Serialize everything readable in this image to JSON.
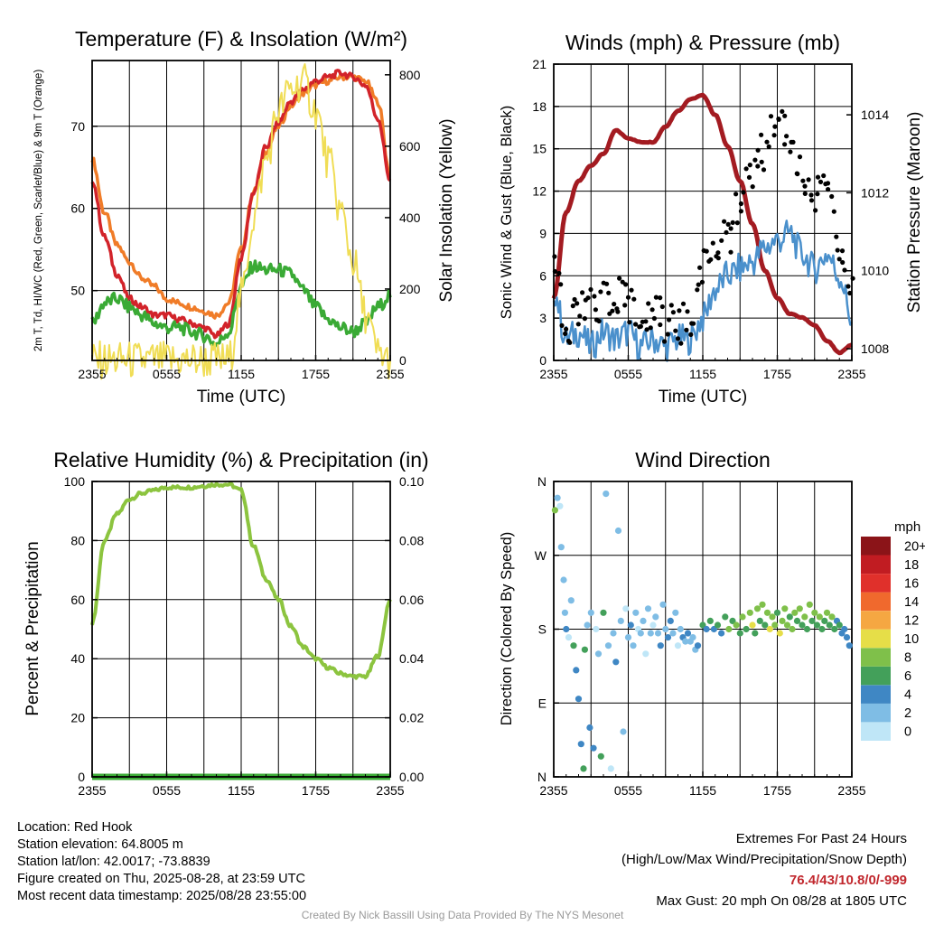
{
  "chart_data": [
    {
      "type": "line",
      "title": "Temperature (F) & Insolation (W/m²)",
      "xlabel": "Time (UTC)",
      "ylabel_left": "2m T, Td, HI/WC (Red, Green, Scarlet/Blue) & 9m T (Orange)",
      "ylabel_right": "Solar Insolation (Yellow)",
      "x_ticks": [
        "2355",
        "0555",
        "1155",
        "1755",
        "2355"
      ],
      "y_ticks_left": [
        50,
        60,
        70
      ],
      "y_ticks_right": [
        0,
        200,
        400,
        600,
        800
      ],
      "ylim_left": [
        41.5,
        78.0
      ],
      "ylim_right": [
        0,
        840
      ],
      "x_hours": [
        0,
        1,
        2,
        3,
        4,
        5,
        6,
        7,
        8,
        9,
        10,
        11,
        12,
        13,
        14,
        15,
        16,
        17,
        18,
        19,
        20,
        21,
        22,
        23,
        24
      ],
      "series": [
        {
          "color": "#f07c28",
          "axis": "left",
          "values": [
            66.0,
            59.5,
            55.5,
            53.5,
            51.5,
            50.5,
            49.0,
            48.5,
            48.0,
            47.5,
            47.0,
            48.5,
            55.0,
            62.0,
            67.0,
            70.0,
            72.5,
            74.0,
            75.0,
            75.5,
            76.0,
            76.0,
            75.5,
            73.0,
            64.0
          ]
        },
        {
          "color": "#d2232a",
          "axis": "left",
          "values": [
            63.5,
            56.5,
            52.0,
            49.0,
            48.0,
            47.0,
            47.0,
            46.5,
            46.0,
            45.5,
            44.5,
            46.0,
            54.0,
            62.0,
            67.5,
            70.5,
            73.0,
            74.5,
            75.5,
            76.0,
            76.5,
            76.0,
            75.0,
            71.0,
            63.5
          ]
        },
        {
          "color": "#3aaa35",
          "axis": "left",
          "values": [
            46.0,
            48.5,
            49.0,
            48.0,
            47.0,
            46.0,
            45.5,
            45.5,
            45.0,
            44.5,
            43.5,
            45.0,
            50.5,
            53.0,
            52.5,
            52.5,
            52.0,
            50.0,
            48.0,
            46.5,
            45.5,
            45.0,
            46.0,
            48.0,
            49.5
          ]
        },
        {
          "color": "#f0dd55",
          "axis": "right",
          "values": [
            0,
            0,
            0,
            0,
            0,
            0,
            0,
            0,
            0,
            0,
            0,
            0,
            180,
            400,
            560,
            700,
            760,
            780,
            700,
            560,
            420,
            280,
            130,
            20,
            0
          ]
        }
      ]
    },
    {
      "type": "line",
      "title": "Winds (mph) & Pressure (mb)",
      "xlabel": "Time (UTC)",
      "ylabel_left": "Sonic Wind & Gust (Blue, Black)",
      "ylabel_right": "Station Pressure (Maroon)",
      "x_ticks": [
        "2355",
        "0555",
        "1155",
        "1755",
        "2355"
      ],
      "y_ticks_left": [
        0,
        3,
        6,
        9,
        12,
        15,
        18,
        21
      ],
      "y_ticks_right": [
        1008,
        1010,
        1012,
        1014
      ],
      "ylim_left": [
        0,
        21
      ],
      "ylim_right": [
        1007.7,
        1015.3
      ],
      "x_hours": [
        0,
        1,
        2,
        3,
        4,
        5,
        6,
        7,
        8,
        9,
        10,
        11,
        12,
        13,
        14,
        15,
        16,
        17,
        18,
        19,
        20,
        21,
        22,
        23,
        24
      ],
      "series": [
        {
          "color": "#a31b21",
          "axis": "right",
          "values": [
            1009.3,
            1011.5,
            1012.3,
            1012.7,
            1013.0,
            1013.6,
            1013.4,
            1013.3,
            1013.3,
            1013.7,
            1014.1,
            1014.4,
            1014.5,
            1014.0,
            1013.2,
            1012.3,
            1011.2,
            1010.0,
            1009.3,
            1008.9,
            1008.8,
            1008.6,
            1008.2,
            1007.9,
            1008.1
          ]
        },
        {
          "color": "#4a90cc",
          "axis": "left",
          "values": [
            5.0,
            1.5,
            2.0,
            1.0,
            2.0,
            1.5,
            2.0,
            1.0,
            1.5,
            1.0,
            1.5,
            1.5,
            3.0,
            5.0,
            6.0,
            6.5,
            7.0,
            8.0,
            8.5,
            9.0,
            7.5,
            6.5,
            7.5,
            6.0,
            3.0
          ]
        },
        {
          "color": "#000000",
          "axis": "left",
          "mode": "points",
          "values": [
            7.5,
            2.5,
            3.0,
            4.5,
            4.0,
            5.0,
            4.0,
            3.0,
            3.5,
            2.5,
            2.5,
            3.0,
            7.0,
            8.5,
            9.0,
            11.0,
            13.5,
            15.0,
            18.0,
            16.0,
            13.0,
            12.0,
            12.0,
            8.0,
            4.5
          ]
        }
      ]
    },
    {
      "type": "line",
      "title": "Relative Humidity (%) & Precipitation (in)",
      "xlabel": "",
      "ylabel_left": "Percent & Precipitation",
      "x_ticks": [
        "2355",
        "0555",
        "1155",
        "1755",
        "2355"
      ],
      "y_ticks_left": [
        0,
        20,
        40,
        60,
        80,
        100
      ],
      "y_ticks_right": [
        "0.00",
        "0.02",
        "0.04",
        "0.06",
        "0.08",
        "0.10"
      ],
      "ylim_left": [
        0,
        100
      ],
      "ylim_right": [
        0,
        0.1
      ],
      "x_hours": [
        0,
        1,
        2,
        3,
        4,
        5,
        6,
        7,
        8,
        9,
        10,
        11,
        12,
        13,
        14,
        15,
        16,
        17,
        18,
        19,
        20,
        21,
        22,
        23,
        24
      ],
      "series": [
        {
          "color": "#8cc43f",
          "axis": "left",
          "values": [
            52,
            80,
            89,
            94,
            96,
            97,
            98,
            98,
            98,
            98.5,
            99,
            99,
            97,
            78,
            67,
            60,
            51,
            44,
            40,
            37,
            35,
            34,
            34,
            41,
            60
          ]
        },
        {
          "color": "#3aaa35",
          "axis": "right",
          "values": [
            0,
            0,
            0,
            0,
            0,
            0,
            0,
            0,
            0,
            0,
            0,
            0,
            0,
            0,
            0,
            0,
            0,
            0,
            0,
            0,
            0,
            0,
            0,
            0,
            0
          ]
        }
      ]
    },
    {
      "type": "scatter",
      "title": "Wind Direction",
      "ylabel_left": "Direction (Colored By Speed)",
      "x_ticks": [
        "2355",
        "0555",
        "1155",
        "1755",
        "2355"
      ],
      "y_ticks_left": [
        "N",
        "E",
        "S",
        "W",
        "N"
      ],
      "ylim_left": [
        0,
        360
      ],
      "legend_title": "mph",
      "legend_labels": [
        "0",
        "2",
        "4",
        "6",
        "8",
        "10",
        "12",
        "14",
        "16",
        "18",
        "20+"
      ],
      "legend_colors": [
        "#bfe6f7",
        "#7fbde5",
        "#3f87c4",
        "#43a05a",
        "#7fc04a",
        "#e6de48",
        "#f5a742",
        "#f0692d",
        "#e0302b",
        "#c11c22",
        "#8b1418"
      ],
      "points": [
        {
          "x": 0.1,
          "y": 325,
          "s": 4
        },
        {
          "x": 0.3,
          "y": 340,
          "s": 1
        },
        {
          "x": 0.5,
          "y": 330,
          "s": 0
        },
        {
          "x": 0.6,
          "y": 280,
          "s": 1
        },
        {
          "x": 0.8,
          "y": 240,
          "s": 1
        },
        {
          "x": 0.9,
          "y": 200,
          "s": 1
        },
        {
          "x": 1.0,
          "y": 180,
          "s": 2
        },
        {
          "x": 1.2,
          "y": 170,
          "s": 0
        },
        {
          "x": 1.4,
          "y": 215,
          "s": 1
        },
        {
          "x": 1.6,
          "y": 160,
          "s": 3
        },
        {
          "x": 1.8,
          "y": 130,
          "s": 2
        },
        {
          "x": 2.0,
          "y": 95,
          "s": 2
        },
        {
          "x": 2.2,
          "y": 40,
          "s": 2
        },
        {
          "x": 2.4,
          "y": 10,
          "s": 3
        },
        {
          "x": 2.5,
          "y": 155,
          "s": 3
        },
        {
          "x": 2.7,
          "y": 185,
          "s": 1
        },
        {
          "x": 2.9,
          "y": 60,
          "s": 2
        },
        {
          "x": 3.0,
          "y": 200,
          "s": 1
        },
        {
          "x": 3.2,
          "y": 35,
          "s": 2
        },
        {
          "x": 3.4,
          "y": 180,
          "s": 0
        },
        {
          "x": 3.6,
          "y": 150,
          "s": 1
        },
        {
          "x": 3.8,
          "y": 25,
          "s": 3
        },
        {
          "x": 4.0,
          "y": 200,
          "s": 3
        },
        {
          "x": 4.2,
          "y": 345,
          "s": 1
        },
        {
          "x": 4.4,
          "y": 160,
          "s": 1
        },
        {
          "x": 4.6,
          "y": 10,
          "s": 0
        },
        {
          "x": 4.8,
          "y": 175,
          "s": 1
        },
        {
          "x": 5.0,
          "y": 140,
          "s": 2
        },
        {
          "x": 5.2,
          "y": 300,
          "s": 1
        },
        {
          "x": 5.4,
          "y": 190,
          "s": 1
        },
        {
          "x": 5.6,
          "y": 55,
          "s": 1
        },
        {
          "x": 5.8,
          "y": 205,
          "s": 0
        },
        {
          "x": 6.0,
          "y": 170,
          "s": 1
        },
        {
          "x": 6.2,
          "y": 185,
          "s": 2
        },
        {
          "x": 6.4,
          "y": 160,
          "s": 1
        },
        {
          "x": 6.6,
          "y": 200,
          "s": 1
        },
        {
          "x": 6.8,
          "y": 180,
          "s": 0
        },
        {
          "x": 7.0,
          "y": 175,
          "s": 1
        },
        {
          "x": 7.2,
          "y": 190,
          "s": 1
        },
        {
          "x": 7.4,
          "y": 150,
          "s": 0
        },
        {
          "x": 7.6,
          "y": 205,
          "s": 1
        },
        {
          "x": 7.8,
          "y": 175,
          "s": 1
        },
        {
          "x": 8.0,
          "y": 185,
          "s": 0
        },
        {
          "x": 8.2,
          "y": 195,
          "s": 1
        },
        {
          "x": 8.4,
          "y": 175,
          "s": 1
        },
        {
          "x": 8.6,
          "y": 160,
          "s": 2
        },
        {
          "x": 8.8,
          "y": 210,
          "s": 1
        },
        {
          "x": 9.0,
          "y": 180,
          "s": 1
        },
        {
          "x": 9.2,
          "y": 170,
          "s": 2
        },
        {
          "x": 9.4,
          "y": 190,
          "s": 2
        },
        {
          "x": 9.6,
          "y": 175,
          "s": 1
        },
        {
          "x": 9.8,
          "y": 200,
          "s": 1
        },
        {
          "x": 10.0,
          "y": 160,
          "s": 0
        },
        {
          "x": 10.2,
          "y": 180,
          "s": 1
        },
        {
          "x": 10.4,
          "y": 170,
          "s": 2
        },
        {
          "x": 10.6,
          "y": 165,
          "s": 1
        },
        {
          "x": 10.8,
          "y": 175,
          "s": 2
        },
        {
          "x": 11.0,
          "y": 165,
          "s": 1
        },
        {
          "x": 11.2,
          "y": 170,
          "s": 1
        },
        {
          "x": 11.4,
          "y": 155,
          "s": 1
        },
        {
          "x": 11.6,
          "y": 160,
          "s": 2
        },
        {
          "x": 12.0,
          "y": 185,
          "s": 3
        },
        {
          "x": 12.3,
          "y": 180,
          "s": 2
        },
        {
          "x": 12.6,
          "y": 190,
          "s": 3
        },
        {
          "x": 12.9,
          "y": 180,
          "s": 2
        },
        {
          "x": 13.2,
          "y": 185,
          "s": 3
        },
        {
          "x": 13.5,
          "y": 175,
          "s": 2
        },
        {
          "x": 13.8,
          "y": 195,
          "s": 3
        },
        {
          "x": 14.1,
          "y": 180,
          "s": 4
        },
        {
          "x": 14.4,
          "y": 190,
          "s": 3
        },
        {
          "x": 14.7,
          "y": 185,
          "s": 4
        },
        {
          "x": 15.0,
          "y": 175,
          "s": 3
        },
        {
          "x": 15.2,
          "y": 195,
          "s": 4
        },
        {
          "x": 15.5,
          "y": 180,
          "s": 3
        },
        {
          "x": 15.8,
          "y": 200,
          "s": 4
        },
        {
          "x": 16.0,
          "y": 185,
          "s": 5
        },
        {
          "x": 16.2,
          "y": 175,
          "s": 3
        },
        {
          "x": 16.4,
          "y": 205,
          "s": 4
        },
        {
          "x": 16.6,
          "y": 190,
          "s": 3
        },
        {
          "x": 16.8,
          "y": 210,
          "s": 4
        },
        {
          "x": 17.0,
          "y": 185,
          "s": 3
        },
        {
          "x": 17.2,
          "y": 200,
          "s": 4
        },
        {
          "x": 17.4,
          "y": 180,
          "s": 5
        },
        {
          "x": 17.6,
          "y": 195,
          "s": 4
        },
        {
          "x": 17.8,
          "y": 185,
          "s": 4
        },
        {
          "x": 18.0,
          "y": 200,
          "s": 3
        },
        {
          "x": 18.2,
          "y": 175,
          "s": 5
        },
        {
          "x": 18.4,
          "y": 190,
          "s": 4
        },
        {
          "x": 18.6,
          "y": 205,
          "s": 4
        },
        {
          "x": 18.8,
          "y": 185,
          "s": 4
        },
        {
          "x": 19.0,
          "y": 195,
          "s": 3
        },
        {
          "x": 19.2,
          "y": 180,
          "s": 4
        },
        {
          "x": 19.4,
          "y": 200,
          "s": 4
        },
        {
          "x": 19.6,
          "y": 190,
          "s": 3
        },
        {
          "x": 19.8,
          "y": 205,
          "s": 4
        },
        {
          "x": 20.0,
          "y": 185,
          "s": 3
        },
        {
          "x": 20.2,
          "y": 195,
          "s": 4
        },
        {
          "x": 20.4,
          "y": 180,
          "s": 3
        },
        {
          "x": 20.6,
          "y": 210,
          "s": 4
        },
        {
          "x": 20.8,
          "y": 190,
          "s": 3
        },
        {
          "x": 21.0,
          "y": 200,
          "s": 4
        },
        {
          "x": 21.2,
          "y": 185,
          "s": 3
        },
        {
          "x": 21.4,
          "y": 195,
          "s": 4
        },
        {
          "x": 21.6,
          "y": 180,
          "s": 3
        },
        {
          "x": 21.8,
          "y": 190,
          "s": 3
        },
        {
          "x": 22.0,
          "y": 200,
          "s": 4
        },
        {
          "x": 22.2,
          "y": 185,
          "s": 3
        },
        {
          "x": 22.4,
          "y": 195,
          "s": 4
        },
        {
          "x": 22.6,
          "y": 180,
          "s": 3
        },
        {
          "x": 22.8,
          "y": 190,
          "s": 2
        },
        {
          "x": 23.0,
          "y": 185,
          "s": 3
        },
        {
          "x": 23.2,
          "y": 175,
          "s": 2
        },
        {
          "x": 23.4,
          "y": 180,
          "s": 2
        },
        {
          "x": 23.6,
          "y": 170,
          "s": 2
        },
        {
          "x": 23.8,
          "y": 160,
          "s": 2
        }
      ]
    }
  ],
  "footer_left": {
    "location": "Location: Red Hook",
    "elevation": "Station elevation: 64.8005 m",
    "latlon": "Station lat/lon: 42.0017; -73.8839",
    "created": "Figure created on Thu, 2025-08-28, at 23:59 UTC",
    "recent": "Most recent data timestamp: 2025/08/28 23:55:00"
  },
  "footer_right": {
    "heading": "Extremes For Past 24 Hours",
    "subheading": "(High/Low/Max Wind/Precipitation/Snow Depth)",
    "values": "76.4/43/10.8/0/-999",
    "gust": "Max Gust: 20 mph On 08/28 at 1805 UTC"
  },
  "credit": "Created By Nick Bassill Using Data Provided By The NYS Mesonet",
  "accent_color": "#c1272d"
}
